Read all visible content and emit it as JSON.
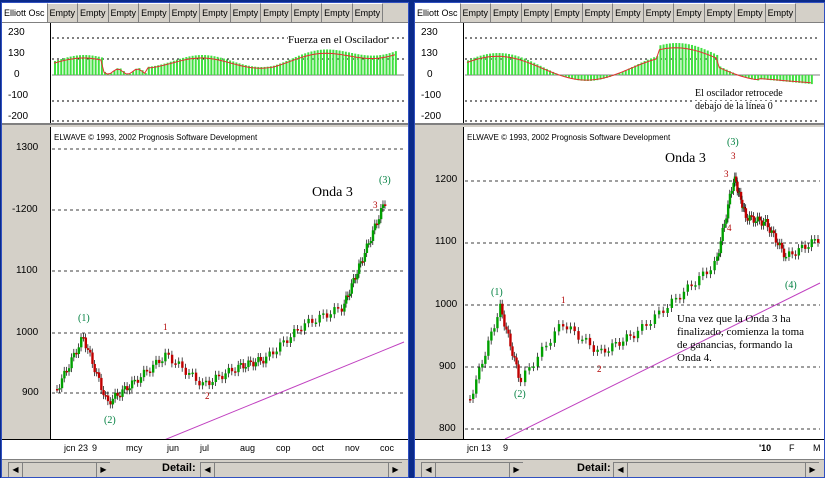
{
  "tabs": [
    "Elliott Osc",
    "Empty",
    "Empty",
    "Empty",
    "Empty",
    "Empty",
    "Empty",
    "Empty",
    "Empty",
    "Empty",
    "Empty",
    "Empty"
  ],
  "left": {
    "osc_labels": [
      "230",
      "130",
      "0",
      "-100",
      "-200"
    ],
    "osc_annotation": "Fuerza en el Oscilador",
    "copyright": "ELWAVE © 1993, 2002 Prognosis Software Development",
    "price_labels": [
      "1300",
      "-1200",
      "1100",
      "1000",
      "900"
    ],
    "wave_labels": [
      "(1)",
      "(2)",
      "1",
      "2",
      "(3)",
      "3"
    ],
    "onda_label": "Onda 3",
    "x_labels": [
      "jcn 23",
      "9",
      "mcy",
      "jun",
      "jul",
      "aug",
      "cop",
      "oct",
      "nov",
      "coc"
    ],
    "detail_label": "Detail:"
  },
  "right": {
    "osc_labels": [
      "230",
      "130",
      "0",
      "-100",
      "-200"
    ],
    "osc_annotation_1": "El oscilador retrocede",
    "osc_annotation_2": "debajo de la línea 0",
    "copyright": "ELWAVE © 1993, 2002 Prognosis Software Development",
    "price_labels": [
      "1200",
      "1100",
      "1000",
      "900",
      "800"
    ],
    "wave_labels": [
      "(1)",
      "(2)",
      "1",
      "2",
      "(3)",
      "3",
      "3",
      "4",
      "(4)"
    ],
    "onda_label": "Onda 3",
    "annotation": "Una vez que la Onda 3 ha finalizado, comienza la toma de ganancias, formando la Onda 4.",
    "x_labels": [
      "jcn 13",
      "9",
      "'10",
      "F",
      "M"
    ],
    "detail_label": "Detail:"
  },
  "colors": {
    "bull": "#00a000",
    "bear": "#c00000",
    "osc_green": "#40e040",
    "osc_line": "#e03030",
    "trend": "#c040c0",
    "label_green": "#008040",
    "label_red": "#b00000"
  }
}
